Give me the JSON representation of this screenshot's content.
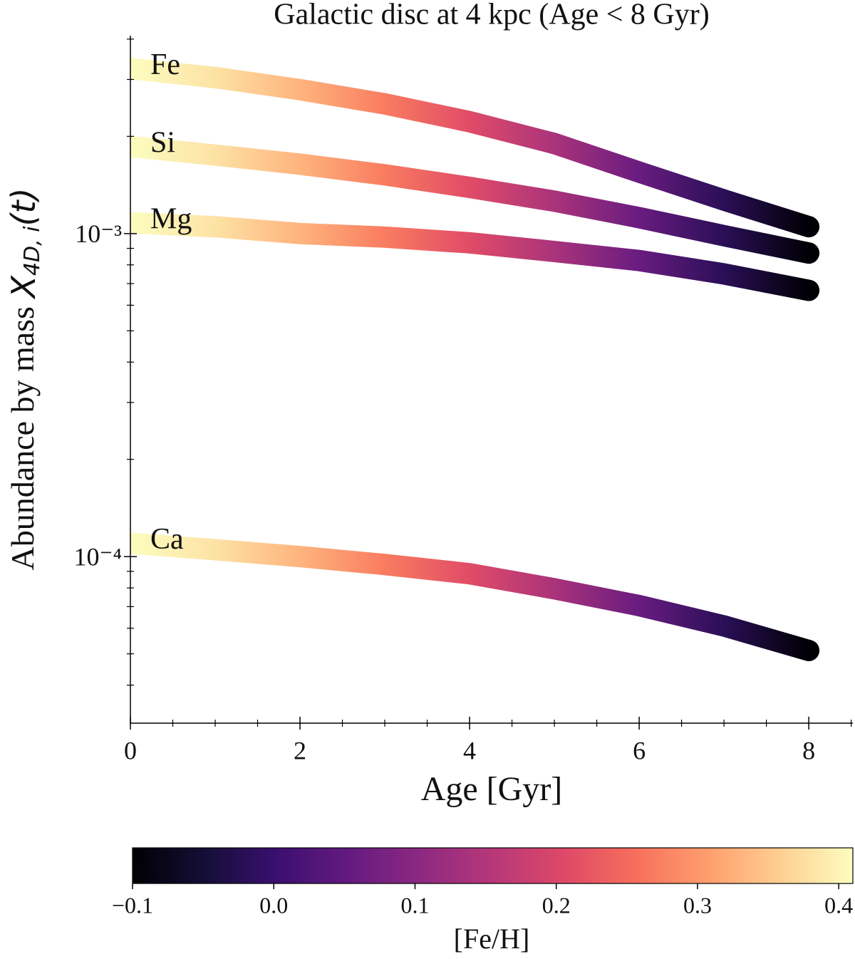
{
  "chart_data": {
    "type": "line",
    "title": "Galactic disc at 4 kpc (Age < 8 Gyr)",
    "xlabel": "Age [Gyr]",
    "ylabel": {
      "text": "Abundance by mass",
      "symbol": "X",
      "subscript": "4D, i",
      "suffix": "(t)"
    },
    "x": [
      0,
      1,
      2,
      3,
      4,
      5,
      6,
      7,
      8
    ],
    "series": [
      {
        "name": "Fe",
        "values": [
          0.00324,
          0.00304,
          0.00279,
          0.00252,
          0.00222,
          0.0019,
          0.00155,
          0.00127,
          0.00105
        ]
      },
      {
        "name": "Si",
        "values": [
          0.00186,
          0.00175,
          0.00164,
          0.00152,
          0.00139,
          0.00126,
          0.00112,
          0.000985,
          0.00087
        ]
      },
      {
        "name": "Mg",
        "values": [
          0.00108,
          0.00105,
          0.001,
          0.000975,
          0.000936,
          0.00088,
          0.000825,
          0.00075,
          0.000667
        ]
      },
      {
        "name": "Ca",
        "values": [
          0.00011,
          0.000105,
          0.0001,
          9.45e-05,
          8.85e-05,
          7.95e-05,
          7.05e-05,
          6.1e-05,
          5.12e-05
        ]
      }
    ],
    "color_values": [
      0.41,
      0.38,
      0.33,
      0.27,
      0.21,
      0.14,
      0.06,
      -0.02,
      -0.1
    ],
    "colormap": "magma",
    "xlim": [
      0,
      8.52
    ],
    "xticks": [
      0,
      2,
      4,
      6,
      8
    ],
    "xminorticks": [
      0.5,
      1,
      1.5,
      2.5,
      3,
      3.5,
      4.5,
      5,
      5.5,
      6.5,
      7,
      7.5,
      8.5
    ],
    "ylog": true,
    "ylim": [
      3.05e-05,
      0.0041
    ],
    "yticks": [
      {
        "value": 0.0001,
        "label": "10⁻⁴"
      },
      {
        "value": 0.001,
        "label": "10⁻³"
      }
    ],
    "yminorticks": [
      4e-05,
      5e-05,
      6e-05,
      7e-05,
      8e-05,
      9e-05,
      0.0002,
      0.0003,
      0.0004,
      0.0005,
      0.0006,
      0.0007,
      0.0008,
      0.0009,
      0.002,
      0.003,
      0.004
    ],
    "colorbar": {
      "label": "[Fe/H]",
      "lim": [
        -0.1,
        0.41
      ],
      "ticks": [
        {
          "value": -0.1,
          "label": "−0.1"
        },
        {
          "value": 0,
          "label": "0.0"
        },
        0.1,
        0.2,
        0.3,
        0.4
      ]
    }
  }
}
